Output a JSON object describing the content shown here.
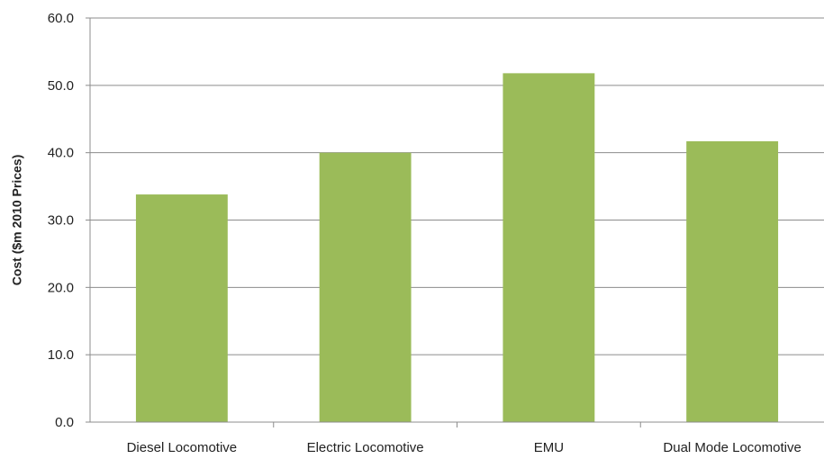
{
  "chart_data": {
    "type": "bar",
    "title": "",
    "xlabel": "",
    "ylabel": "Cost ($m 2010 Prices)",
    "categories": [
      "Diesel Locomotive",
      "Electric Locomotive",
      "EMU",
      "Dual Mode Locomotive"
    ],
    "values": [
      33.8,
      40.0,
      51.8,
      41.7
    ],
    "ylim": [
      0,
      60
    ],
    "yticks": [
      0,
      10,
      20,
      30,
      40,
      50,
      60
    ],
    "ytick_labels": [
      "0.0",
      "10.0",
      "20.0",
      "30.0",
      "40.0",
      "50.0",
      "60.0"
    ],
    "grid": true,
    "legend": "none",
    "colors": {
      "bar": "#9BBB59",
      "gridline": "#8C8C8C",
      "axis": "#8C8C8C",
      "text": "#222222"
    }
  }
}
